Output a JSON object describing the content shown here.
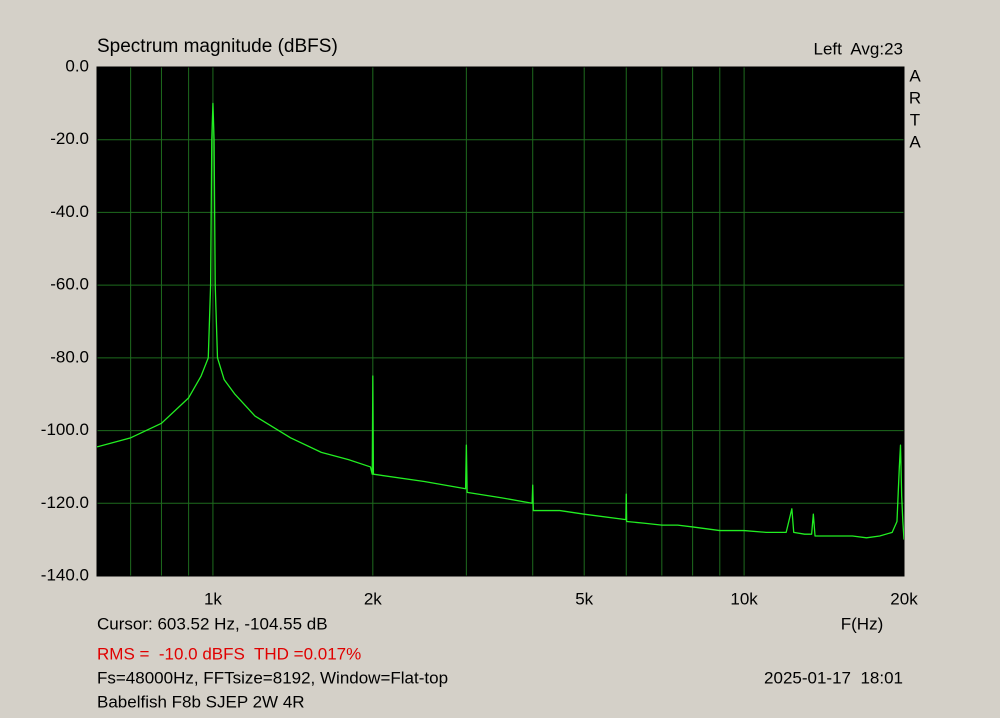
{
  "chart_data": {
    "type": "line",
    "title": "Spectrum magnitude (dBFS)",
    "channel_label": "Left  Avg:23",
    "side_label": [
      "A",
      "R",
      "T",
      "A"
    ],
    "x_label": "F(Hz)",
    "cursor_text": "Cursor: 603.52 Hz, -104.55 dB",
    "rms_text": "RMS =  -10.0 dBFS  THD =0.017%",
    "settings_text": "Fs=48000Hz, FFTsize=8192, Window=Flat-top",
    "timestamp": "2025-01-17  18:01",
    "device_name": "Babelfish F8b SJEP 2W 4R",
    "xscale": "log",
    "xlim": [
      605,
      20000
    ],
    "ylim": [
      -140,
      0
    ],
    "xticks": [
      {
        "value": 1000,
        "label": "1k"
      },
      {
        "value": 2000,
        "label": "2k"
      },
      {
        "value": 5000,
        "label": "5k"
      },
      {
        "value": 10000,
        "label": "10k"
      },
      {
        "value": 20000,
        "label": "20k"
      }
    ],
    "minor_xticks": [
      700,
      800,
      900,
      3000,
      4000,
      6000,
      7000,
      8000,
      9000
    ],
    "yticks": [
      {
        "value": 0,
        "label": "0.0"
      },
      {
        "value": -20,
        "label": "-20.0"
      },
      {
        "value": -40,
        "label": "-40.0"
      },
      {
        "value": -60,
        "label": "-60.0"
      },
      {
        "value": -80,
        "label": "-80.0"
      },
      {
        "value": -100,
        "label": "-100.0"
      },
      {
        "value": -120,
        "label": "-120.0"
      },
      {
        "value": -140,
        "label": "-140.0"
      }
    ],
    "grid": true,
    "x": [
      605,
      700,
      800,
      900,
      950,
      980,
      990,
      995,
      1000,
      1005,
      1010,
      1020,
      1050,
      1100,
      1200,
      1400,
      1600,
      1800,
      1980,
      1995,
      2000,
      2005,
      2500,
      2990,
      3000,
      3010,
      3500,
      3990,
      4000,
      4010,
      4500,
      5000,
      5990,
      6000,
      6010,
      6500,
      7000,
      7500,
      8000,
      9000,
      10000,
      11000,
      12000,
      12300,
      12400,
      13000,
      13400,
      13500,
      13600,
      15000,
      16000,
      17000,
      18000,
      19000,
      19400,
      19600,
      19700,
      19800,
      19900,
      20000
    ],
    "series": [
      {
        "name": "Left",
        "color": "#22ee22",
        "values": [
          -104.5,
          -102,
          -98,
          -91,
          -85,
          -80,
          -60,
          -20,
          -10,
          -20,
          -60,
          -80,
          -86,
          -90,
          -96,
          -102,
          -106,
          -108,
          -110,
          -112,
          -85,
          -112,
          -114,
          -116,
          -104,
          -117,
          -118.5,
          -120,
          -115,
          -122,
          -122,
          -123,
          -124.5,
          -117.5,
          -125,
          -125.5,
          -126,
          -126,
          -126.5,
          -127.5,
          -127.5,
          -128,
          -128,
          -121.5,
          -128,
          -128.5,
          -128.5,
          -123,
          -129,
          -129,
          -129,
          -129.5,
          -129,
          -128,
          -125,
          -110,
          -104,
          -118,
          -125,
          -130
        ]
      }
    ]
  }
}
